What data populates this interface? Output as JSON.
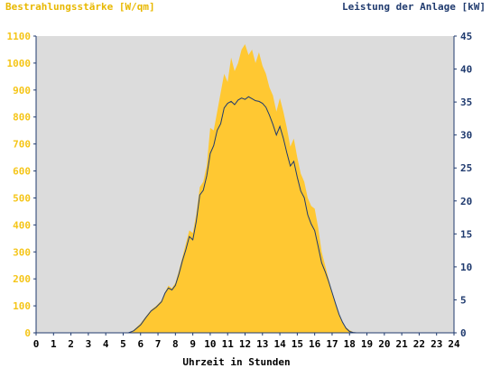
{
  "chart_data": {
    "type": "area",
    "title_left": "Bestrahlungsstärke [W/qm]",
    "title_right": "Leistung der Anlage [kW]",
    "xlabel": "Uhrzeit in Stunden",
    "xlim": [
      0,
      24
    ],
    "y_left_lim": [
      0,
      1100
    ],
    "y_right_lim": [
      0,
      45
    ],
    "x_ticks": [
      "0",
      "1",
      "2",
      "3",
      "4",
      "5",
      "6",
      "7",
      "8",
      "9",
      "10",
      "11",
      "12",
      "13",
      "14",
      "15",
      "16",
      "17",
      "18",
      "19",
      "20",
      "21",
      "22",
      "23",
      "24"
    ],
    "y_left_ticks": [
      "0",
      "100",
      "200",
      "300",
      "400",
      "500",
      "600",
      "700",
      "800",
      "900",
      "1000",
      "1100"
    ],
    "y_right_ticks": [
      "0",
      "5",
      "10",
      "15",
      "20",
      "25",
      "30",
      "35",
      "40",
      "45"
    ],
    "colors": {
      "plot_bg": "#dcdcdc",
      "irradiance_fill": "#ffc832",
      "power_line": "#1f3a6e",
      "left_axis_text": "#f5c518",
      "right_axis_text": "#1f3a6e"
    },
    "series": [
      {
        "name": "Bestrahlungsstärke [W/qm]",
        "axis": "left",
        "style": "area",
        "x": [
          0,
          5.3,
          5.6,
          6,
          6.3,
          6.6,
          6.9,
          7.2,
          7.4,
          7.6,
          7.8,
          8,
          8.2,
          8.4,
          8.6,
          8.8,
          9,
          9.2,
          9.4,
          9.6,
          9.8,
          10,
          10.2,
          10.4,
          10.6,
          10.8,
          11,
          11.2,
          11.4,
          11.6,
          11.8,
          12,
          12.2,
          12.4,
          12.6,
          12.8,
          13,
          13.2,
          13.4,
          13.6,
          13.8,
          14,
          14.2,
          14.4,
          14.6,
          14.8,
          15,
          15.2,
          15.4,
          15.6,
          15.8,
          16,
          16.2,
          16.4,
          16.6,
          16.8,
          17,
          17.2,
          17.4,
          17.6,
          17.8,
          18,
          18.2,
          18.4,
          18.6,
          18.8,
          19,
          19.2,
          19.4,
          19.6,
          24
        ],
        "y": [
          0,
          0,
          10,
          35,
          60,
          85,
          100,
          120,
          150,
          175,
          165,
          185,
          230,
          280,
          330,
          380,
          370,
          440,
          540,
          560,
          620,
          760,
          750,
          820,
          890,
          960,
          930,
          1020,
          970,
          1000,
          1050,
          1070,
          1030,
          1050,
          1000,
          1040,
          990,
          960,
          910,
          880,
          820,
          870,
          820,
          760,
          690,
          720,
          650,
          590,
          560,
          500,
          470,
          460,
          390,
          300,
          250,
          200,
          150,
          110,
          70,
          40,
          20,
          10,
          3,
          0,
          0,
          0,
          0,
          0,
          0,
          0,
          0
        ]
      },
      {
        "name": "Leistung der Anlage [kW]",
        "axis": "right",
        "style": "line",
        "x": [
          0,
          5.3,
          5.6,
          6,
          6.3,
          6.6,
          6.9,
          7.2,
          7.4,
          7.6,
          7.8,
          8,
          8.2,
          8.4,
          8.6,
          8.8,
          9,
          9.2,
          9.4,
          9.6,
          9.8,
          10,
          10.2,
          10.4,
          10.6,
          10.8,
          11,
          11.2,
          11.4,
          11.6,
          11.8,
          12,
          12.2,
          12.4,
          12.6,
          12.8,
          13,
          13.2,
          13.4,
          13.6,
          13.8,
          14,
          14.2,
          14.4,
          14.6,
          14.8,
          15,
          15.2,
          15.4,
          15.6,
          15.8,
          16,
          16.2,
          16.4,
          16.6,
          16.8,
          17,
          17.2,
          17.4,
          17.6,
          17.8,
          18,
          18.2,
          18.4,
          18.6,
          18.8,
          19,
          19.2,
          19.4,
          19.6,
          24
        ],
        "y": [
          0,
          0,
          0.3,
          1.2,
          2.3,
          3.3,
          3.9,
          4.7,
          6.0,
          6.8,
          6.5,
          7.2,
          8.9,
          10.9,
          12.6,
          14.6,
          14.1,
          16.9,
          20.9,
          21.6,
          23.8,
          27.2,
          28.4,
          30.7,
          31.7,
          34.1,
          34.8,
          35.1,
          34.6,
          35.3,
          35.6,
          35.4,
          35.8,
          35.5,
          35.2,
          35.1,
          34.8,
          34.2,
          33.0,
          31.6,
          30.0,
          31.3,
          29.5,
          27.3,
          25.3,
          26.0,
          23.6,
          21.5,
          20.5,
          17.9,
          16.5,
          15.5,
          13.1,
          10.6,
          9.3,
          7.8,
          6.1,
          4.4,
          2.8,
          1.6,
          0.7,
          0.2,
          0.05,
          0,
          0,
          0,
          0,
          0,
          0,
          0,
          0
        ]
      }
    ]
  }
}
